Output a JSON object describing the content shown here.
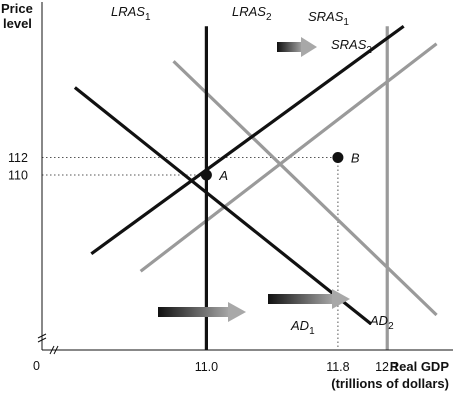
{
  "chart_data": {
    "type": "line",
    "ylabel_line1": "Price",
    "ylabel_line2": "level",
    "xlabel_line1": "Real GDP",
    "xlabel_line2": "(trillions of dollars)",
    "origin_label": "0",
    "xlim": [
      10.0,
      12.5
    ],
    "ylim": [
      90,
      130
    ],
    "x_ticks": [
      {
        "value": 11.0,
        "label": "11.0"
      },
      {
        "value": 11.8,
        "label": "11.8"
      },
      {
        "value": 12.1,
        "label": "12.1"
      }
    ],
    "y_ticks": [
      {
        "value": 110,
        "label": "110"
      },
      {
        "value": 112,
        "label": "112"
      }
    ],
    "series": [
      {
        "name": "LRAS1",
        "base": "LRAS",
        "sub": "1",
        "color": "#111111",
        "points": [
          [
            11.0,
            90
          ],
          [
            11.0,
            127
          ]
        ]
      },
      {
        "name": "LRAS2",
        "base": "LRAS",
        "sub": "2",
        "color": "#9a9a9a",
        "points": [
          [
            12.1,
            90
          ],
          [
            12.1,
            127
          ]
        ]
      },
      {
        "name": "SRAS1",
        "base": "SRAS",
        "sub": "1",
        "color": "#111111",
        "points": [
          [
            10.3,
            101
          ],
          [
            12.2,
            127
          ]
        ]
      },
      {
        "name": "SRAS2",
        "base": "SRAS",
        "sub": "2",
        "color": "#9a9a9a",
        "points": [
          [
            10.6,
            99
          ],
          [
            12.4,
            125
          ]
        ]
      },
      {
        "name": "AD1",
        "base": "AD",
        "sub": "1",
        "color": "#111111",
        "points": [
          [
            10.2,
            120
          ],
          [
            12.0,
            93
          ]
        ]
      },
      {
        "name": "AD2",
        "base": "AD",
        "sub": "2",
        "color": "#9a9a9a",
        "points": [
          [
            10.8,
            123
          ],
          [
            12.4,
            94
          ]
        ]
      }
    ],
    "points": [
      {
        "label": "A",
        "x": 11.0,
        "y": 110
      },
      {
        "label": "B",
        "x": 11.8,
        "y": 112
      }
    ]
  }
}
